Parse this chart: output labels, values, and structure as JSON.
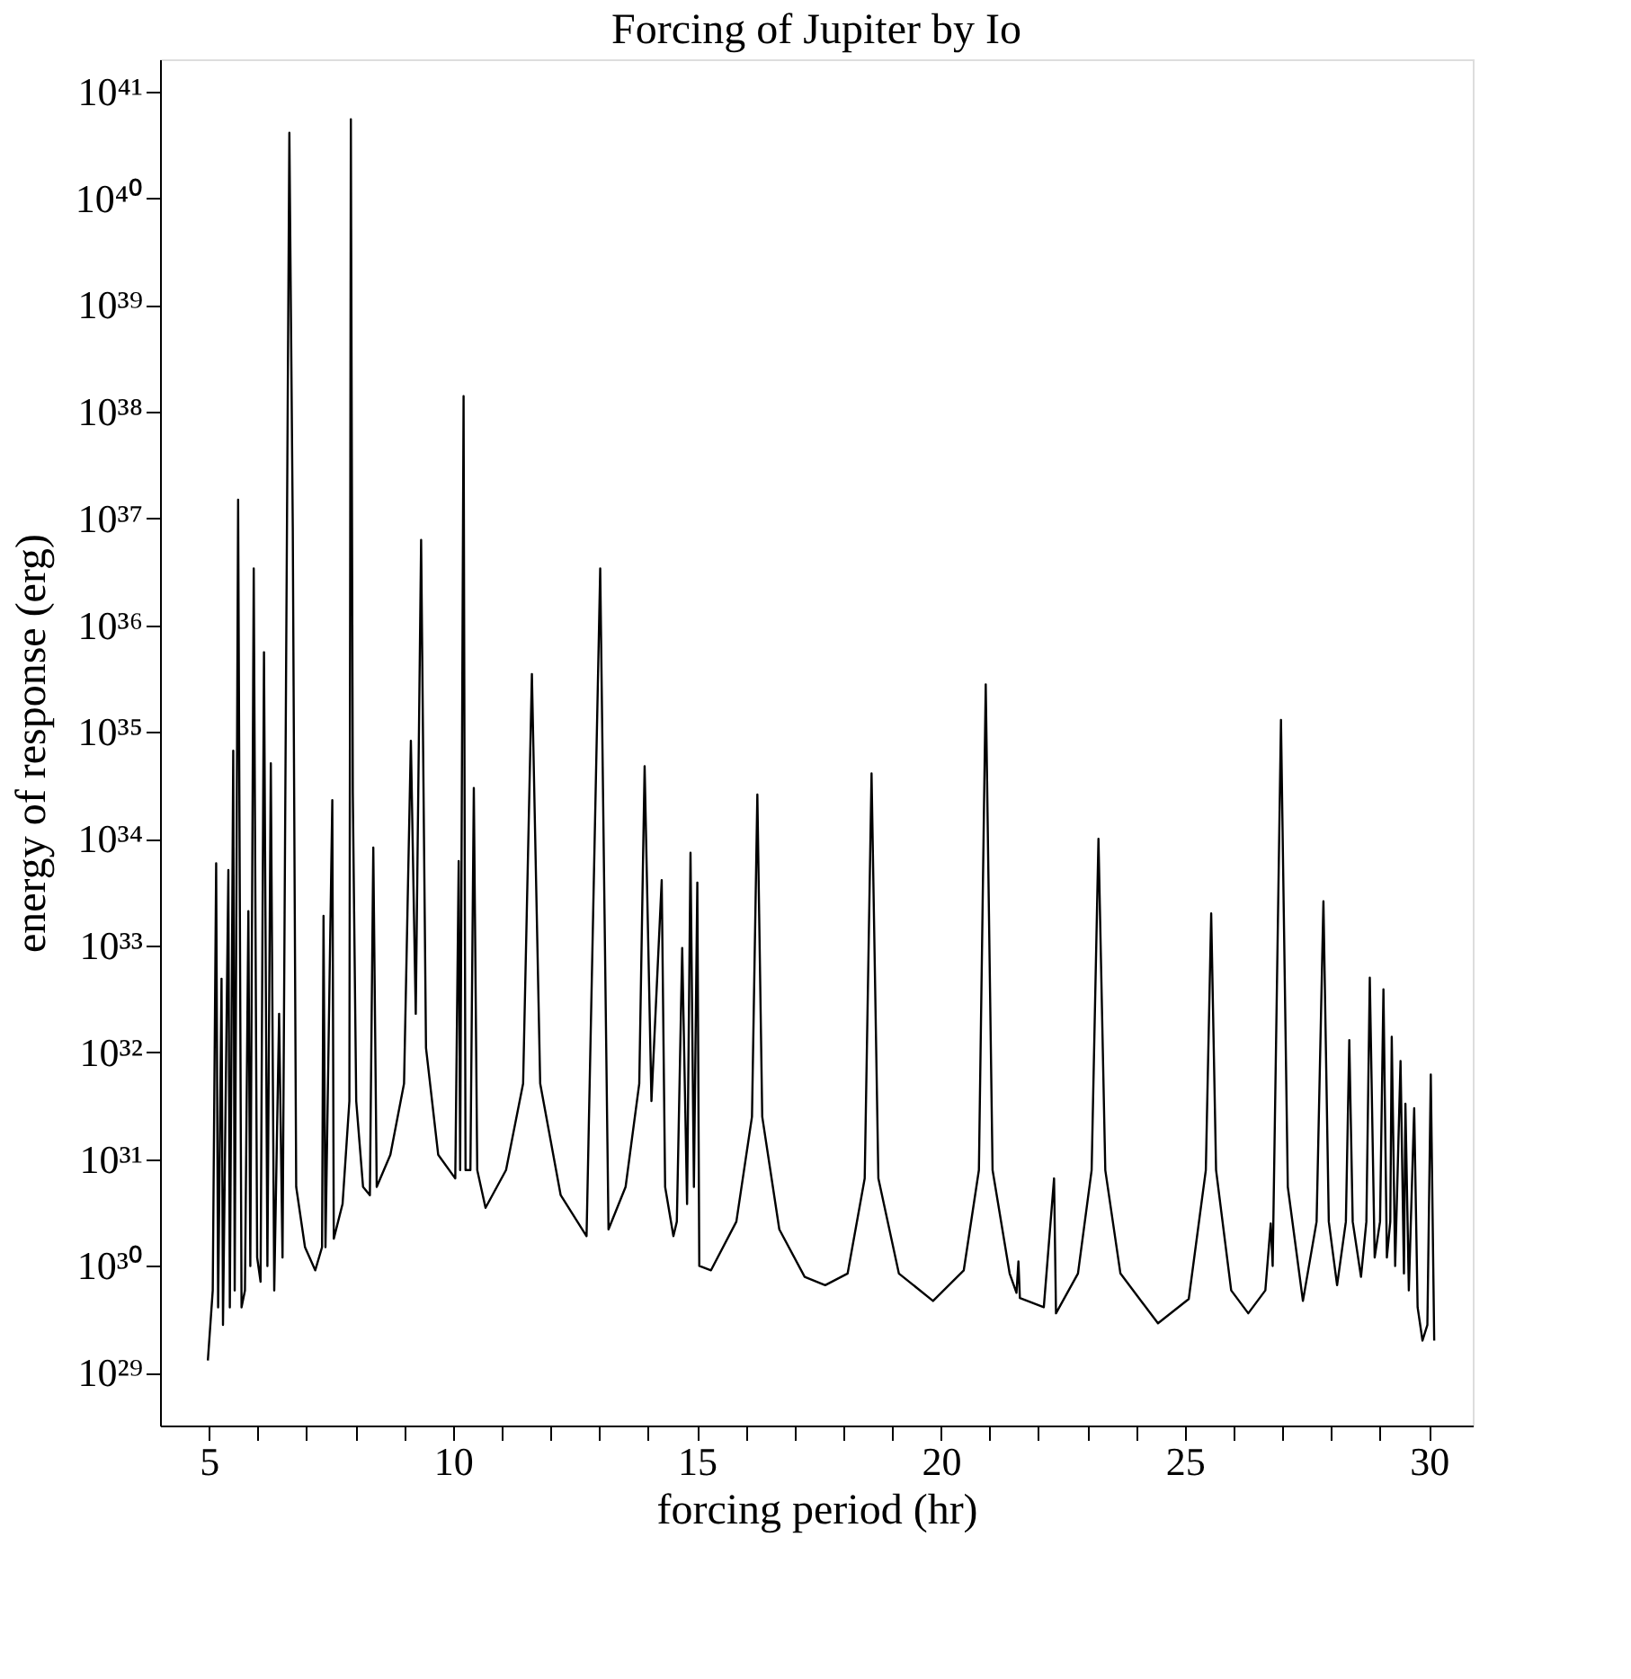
{
  "chart_data": {
    "type": "line",
    "title": "Forcing of Jupiter by Io",
    "xlabel": "forcing period (hr)",
    "ylabel": "energy of response (erg)",
    "log": "y",
    "grid": false,
    "xlim": [
      4.0,
      30.9
    ],
    "ylim": [
      3.2e+28,
      2e+41
    ],
    "xticks": [
      5,
      {
        "value": 6,
        "label": null
      },
      {
        "value": 7,
        "label": null
      },
      {
        "value": 8,
        "label": null
      },
      {
        "value": 9,
        "label": null
      },
      10,
      {
        "value": 11,
        "label": null
      },
      {
        "value": 12,
        "label": null
      },
      {
        "value": 13,
        "label": null
      },
      {
        "value": 14,
        "label": null
      },
      15,
      {
        "value": 16,
        "label": null
      },
      {
        "value": 17,
        "label": null
      },
      {
        "value": 18,
        "label": null
      },
      {
        "value": 19,
        "label": null
      },
      20,
      {
        "value": 21,
        "label": null
      },
      {
        "value": 22,
        "label": null
      },
      {
        "value": 23,
        "label": null
      },
      {
        "value": 24,
        "label": null
      },
      25,
      {
        "value": 26,
        "label": null
      },
      {
        "value": 27,
        "label": null
      },
      {
        "value": 28,
        "label": null
      },
      {
        "value": 29,
        "label": null
      },
      30
    ],
    "yticks": [
      {
        "value": 1e+29,
        "label": "10²⁹"
      },
      {
        "value": 1e+30,
        "label": "10³⁰"
      },
      {
        "value": 1e+31,
        "label": "10³¹"
      },
      {
        "value": 1e+32,
        "label": "10³²"
      },
      {
        "value": 1e+33,
        "label": "10³³"
      },
      {
        "value": 1e+34,
        "label": "10³⁴"
      },
      {
        "value": 1e+35,
        "label": "10³⁵"
      },
      {
        "value": 1e+36,
        "label": "10³⁶"
      },
      {
        "value": 1e+37,
        "label": "10³⁷"
      },
      {
        "value": 1e+38,
        "label": "10³⁸"
      },
      {
        "value": 1e+39,
        "label": "10³⁹"
      },
      {
        "value": 1e+40,
        "label": "10⁴⁰"
      },
      {
        "value": 1e+41,
        "label": "10⁴¹"
      }
    ],
    "x": [
      4.98,
      5.08,
      5.15,
      5.19,
      5.26,
      5.29,
      5.4,
      5.43,
      5.5,
      5.53,
      5.6,
      5.67,
      5.74,
      5.81,
      5.85,
      5.92,
      5.99,
      6.06,
      6.13,
      6.2,
      6.27,
      6.34,
      6.44,
      6.51,
      6.65,
      6.72,
      6.79,
      6.97,
      7.18,
      7.32,
      7.35,
      7.39,
      7.53,
      7.56,
      7.74,
      7.88,
      7.91,
      7.95,
      8.02,
      8.16,
      8.3,
      8.37,
      8.44,
      8.72,
      9.0,
      9.14,
      9.24,
      9.35,
      9.45,
      9.7,
      10.05,
      10.12,
      10.15,
      10.22,
      10.26,
      10.36,
      10.43,
      10.5,
      10.67,
      11.09,
      11.44,
      11.62,
      11.79,
      12.21,
      12.74,
      13.02,
      13.19,
      13.54,
      13.82,
      13.93,
      14.07,
      14.28,
      14.35,
      14.52,
      14.59,
      14.7,
      14.8,
      14.87,
      14.94,
      15.01,
      15.05,
      15.29,
      15.81,
      16.13,
      16.24,
      16.34,
      16.69,
      17.21,
      17.63,
      18.09,
      18.44,
      18.58,
      18.72,
      19.14,
      19.84,
      20.47,
      20.78,
      20.92,
      21.06,
      21.41,
      21.55,
      21.59,
      21.62,
      22.11,
      22.32,
      22.36,
      22.81,
      23.09,
      23.23,
      23.37,
      23.68,
      24.45,
      25.08,
      25.43,
      25.54,
      25.64,
      25.95,
      26.3,
      26.65,
      26.76,
      26.8,
      26.97,
      27.11,
      27.42,
      27.7,
      27.84,
      27.95,
      28.12,
      28.3,
      28.37,
      28.44,
      28.61,
      28.72,
      28.79,
      28.89,
      29.0,
      29.07,
      29.14,
      29.21,
      29.24,
      29.31,
      29.42,
      29.49,
      29.52,
      29.59,
      29.7,
      29.77,
      29.87,
      29.97,
      30.04,
      30.11
    ],
    "series": [
      {
        "color": "#000000",
        "values": [
          1.3e+29,
          5.9e+29,
          5.9e+33,
          4.1e+29,
          4.9e+32,
          2.8e+29,
          5.1e+33,
          4.1e+29,
          6.7e+34,
          5.9e+29,
          1.5e+37,
          4.1e+29,
          5.9e+29,
          2.1e+33,
          1e+30,
          3.4e+36,
          1.2e+30,
          7.1e+29,
          5.6e+35,
          1e+30,
          5.1e+34,
          5.9e+29,
          2.3e+32,
          1.2e+30,
          4.1e+40,
          8.3e+36,
          5.5e+30,
          1.5e+30,
          9.1e+29,
          1.5e+30,
          1.9e+33,
          1.5e+30,
          2.3e+34,
          1.8e+30,
          3.8e+30,
          3.5e+31,
          5.5e+40,
          2.7e+34,
          3.5e+31,
          5.5e+30,
          4.6e+30,
          8.3e+33,
          5.5e+30,
          1.1e+31,
          5.1e+31,
          8.3e+34,
          2.3e+32,
          6.3e+36,
          1.1e+32,
          1.1e+31,
          6.6e+30,
          6.2e+33,
          7.9e+30,
          1.4e+38,
          7.9e+30,
          7.9e+30,
          3e+34,
          7.9e+30,
          3.5e+30,
          7.9e+30,
          5.1e+31,
          3.5e+35,
          5.1e+31,
          4.6e+30,
          1.9e+30,
          3.4e+36,
          2.2e+30,
          5.5e+30,
          5.1e+31,
          4.8e+34,
          3.5e+31,
          4.1e+33,
          5.5e+30,
          1.9e+30,
          2.6e+30,
          9.5e+32,
          3.8e+30,
          7.4e+33,
          5.5e+30,
          3.9e+33,
          1e+30,
          9.1e+29,
          2.6e+30,
          2.5e+31,
          2.6e+34,
          2.5e+31,
          2.2e+30,
          7.9e+29,
          6.6e+29,
          8.5e+29,
          6.6e+30,
          4.1e+34,
          6.6e+30,
          8.5e+29,
          4.7e+29,
          9.1e+29,
          7.9e+30,
          2.8e+35,
          7.9e+30,
          8.5e+29,
          5.6e+29,
          1.1e+30,
          5e+29,
          4.1e+29,
          6.6e+30,
          3.6e+29,
          8.5e+29,
          7.9e+30,
          1e+34,
          7.9e+30,
          8.5e+29,
          2.9e+29,
          4.9e+29,
          7.9e+30,
          2e+33,
          7.9e+30,
          5.9e+29,
          3.6e+29,
          5.9e+29,
          2.5e+30,
          1e+30,
          1.3e+35,
          5.5e+30,
          4.7e+29,
          2.6e+30,
          2.6e+33,
          2.6e+30,
          6.6e+29,
          2.6e+30,
          1.3e+32,
          2.6e+30,
          7.9e+29,
          2.6e+30,
          5e+32,
          1.2e+30,
          2.6e+30,
          3.9e+32,
          1.2e+30,
          2.6e+30,
          1.4e+32,
          1e+30,
          8.3e+31,
          8.5e+29,
          3.3e+31,
          5.9e+29,
          3e+31,
          4.1e+29,
          2e+29,
          2.8e+29,
          6.2e+31,
          2e+29
        ]
      }
    ]
  }
}
